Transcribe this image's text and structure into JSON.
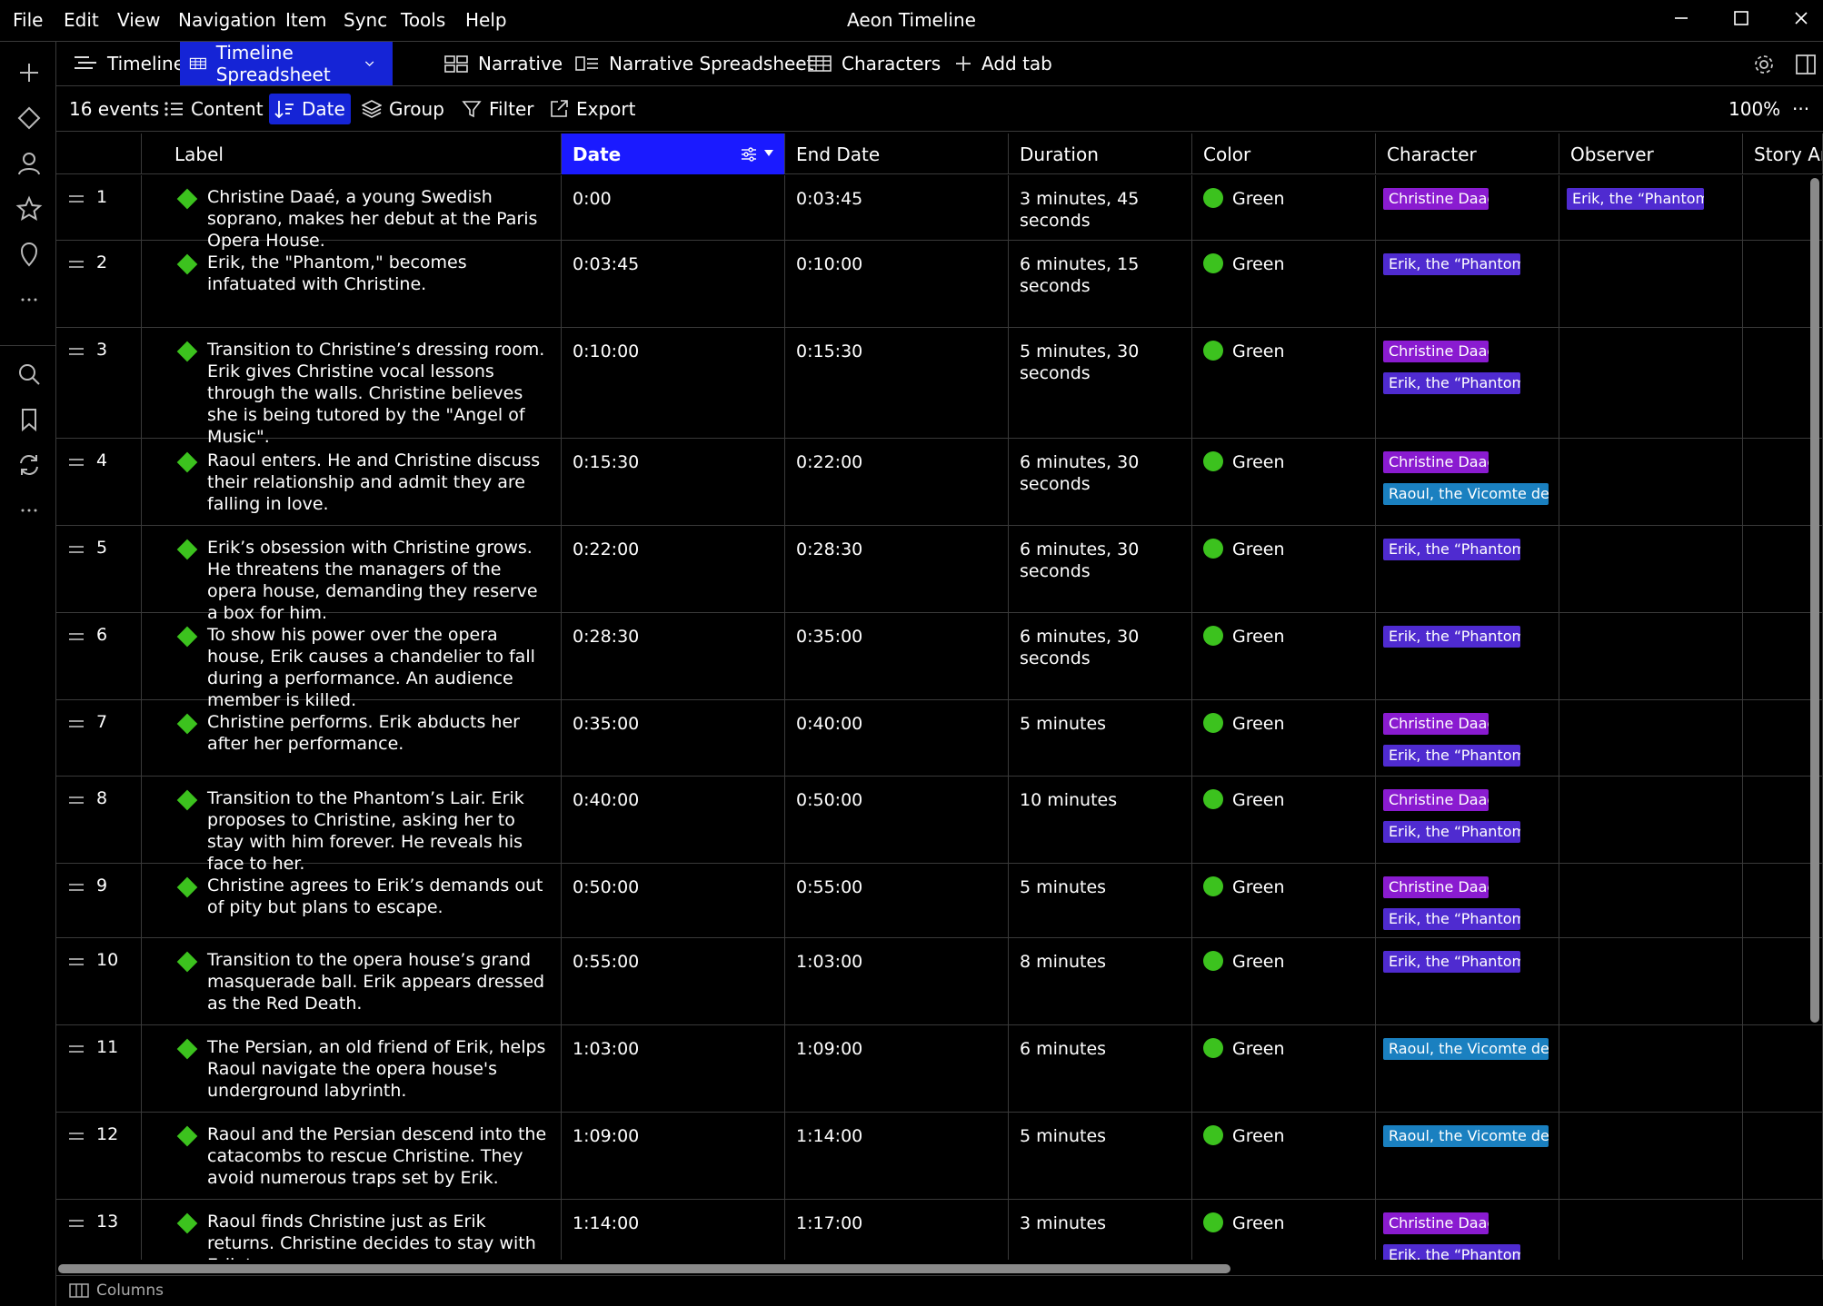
{
  "menubar": {
    "items": [
      "File",
      "Edit",
      "View",
      "Navigation",
      "Item",
      "Sync",
      "Tools",
      "Help"
    ],
    "app_title": "Aeon Timeline"
  },
  "tabs": [
    {
      "label": "Timeline",
      "icon": "timeline-icon"
    },
    {
      "label": "Timeline Spreadsheet",
      "icon": "spreadsheet-icon",
      "active": true
    },
    {
      "label": "Narrative",
      "icon": "narrative-icon"
    },
    {
      "label": "Narrative Spreadsheet",
      "icon": "narrative-spreadsheet-icon"
    },
    {
      "label": "Characters",
      "icon": "characters-grid-icon"
    },
    {
      "label": "Add tab",
      "icon": "plus-icon"
    }
  ],
  "toolbar": {
    "event_count": "16 events",
    "content_label": "Content",
    "date_label": "Date",
    "group_label": "Group",
    "filter_label": "Filter",
    "export_label": "Export",
    "zoom": "100%",
    "more": "···"
  },
  "columns": {
    "label": "Label",
    "date": "Date",
    "end_date": "End Date",
    "duration": "Duration",
    "color": "Color",
    "character": "Character",
    "observer": "Observer",
    "story_arc": "Story Arc"
  },
  "tag_labels": {
    "christine": "Christine Daaé",
    "erik": "Erik, the “Phantom”",
    "raoul": "Raoul, the Vicomte de Chagny"
  },
  "rows": [
    {
      "num": "1",
      "label": "Christine Daaé, a young Swedish soprano, makes her debut at the Paris Opera House.",
      "date": "0:00",
      "end": "0:03:45",
      "duration": "3 minutes, 45 seconds",
      "color": "Green",
      "chars": [
        "christine"
      ],
      "observer": [
        "erik"
      ]
    },
    {
      "num": "2",
      "label": "Erik, the \"Phantom,\" becomes infatuated with Christine.",
      "date": "0:03:45",
      "end": "0:10:00",
      "duration": "6 minutes, 15 seconds",
      "color": "Green",
      "chars": [
        "erik"
      ],
      "observer": []
    },
    {
      "num": "3",
      "label": "Transition to Christine’s dressing room. Erik gives Christine vocal lessons through the walls. Christine believes she is being tutored by the \"Angel of Music\".",
      "date": "0:10:00",
      "end": "0:15:30",
      "duration": "5 minutes, 30 seconds",
      "color": "Green",
      "chars": [
        "christine",
        "erik"
      ],
      "observer": []
    },
    {
      "num": "4",
      "label": "Raoul enters. He and Christine discuss their relationship and admit they are falling in love.",
      "date": "0:15:30",
      "end": "0:22:00",
      "duration": "6 minutes, 30 seconds",
      "color": "Green",
      "chars": [
        "christine",
        "raoul"
      ],
      "observer": []
    },
    {
      "num": "5",
      "label": "Erik’s obsession with Christine grows. He threatens the managers of the opera house, demanding they reserve a box for him.",
      "date": "0:22:00",
      "end": "0:28:30",
      "duration": "6 minutes, 30 seconds",
      "color": "Green",
      "chars": [
        "erik"
      ],
      "observer": []
    },
    {
      "num": "6",
      "label": "To show his power over the opera house, Erik causes a chandelier to fall during a performance. An audience member is killed.",
      "date": "0:28:30",
      "end": "0:35:00",
      "duration": "6 minutes, 30 seconds",
      "color": "Green",
      "chars": [
        "erik"
      ],
      "observer": []
    },
    {
      "num": "7",
      "label": "Christine performs. Erik abducts her after her performance.",
      "date": "0:35:00",
      "end": "0:40:00",
      "duration": "5 minutes",
      "color": "Green",
      "chars": [
        "christine",
        "erik"
      ],
      "observer": []
    },
    {
      "num": "8",
      "label": "Transition to the Phantom’s Lair. Erik proposes to Christine, asking her to stay with him forever. He reveals his face to her.",
      "date": "0:40:00",
      "end": "0:50:00",
      "duration": "10 minutes",
      "color": "Green",
      "chars": [
        "christine",
        "erik"
      ],
      "observer": []
    },
    {
      "num": "9",
      "label": "Christine agrees to Erik’s demands out of pity but plans to escape.",
      "date": "0:50:00",
      "end": "0:55:00",
      "duration": "5 minutes",
      "color": "Green",
      "chars": [
        "christine",
        "erik"
      ],
      "observer": []
    },
    {
      "num": "10",
      "label": "Transition to the opera house’s grand masquerade ball. Erik appears dressed as the Red Death.",
      "date": "0:55:00",
      "end": "1:03:00",
      "duration": "8 minutes",
      "color": "Green",
      "chars": [
        "erik"
      ],
      "observer": []
    },
    {
      "num": "11",
      "label": "The Persian, an old friend of Erik, helps Raoul navigate the opera house's underground labyrinth.",
      "date": "1:03:00",
      "end": "1:09:00",
      "duration": "6 minutes",
      "color": "Green",
      "chars": [
        "raoul"
      ],
      "observer": []
    },
    {
      "num": "12",
      "label": "Raoul and the Persian descend into the catacombs to rescue Christine. They avoid numerous traps set by Erik.",
      "date": "1:09:00",
      "end": "1:14:00",
      "duration": "5 minutes",
      "color": "Green",
      "chars": [
        "raoul"
      ],
      "observer": []
    },
    {
      "num": "13",
      "label": "Raoul finds Christine just as Erik returns. Christine decides to stay with Erik to save",
      "date": "1:14:00",
      "end": "1:17:00",
      "duration": "3 minutes",
      "color": "Green",
      "chars": [
        "christine",
        "erik"
      ],
      "observer": []
    }
  ],
  "footer": {
    "columns_label": "Columns"
  },
  "colors": {
    "accent": "#1524d6",
    "date_header": "#1a1aff",
    "green": "#3cc21e",
    "christine_tag": "#8a1bd0",
    "erik_tag": "#4f2bd0",
    "raoul_tag": "#1a80c0"
  }
}
